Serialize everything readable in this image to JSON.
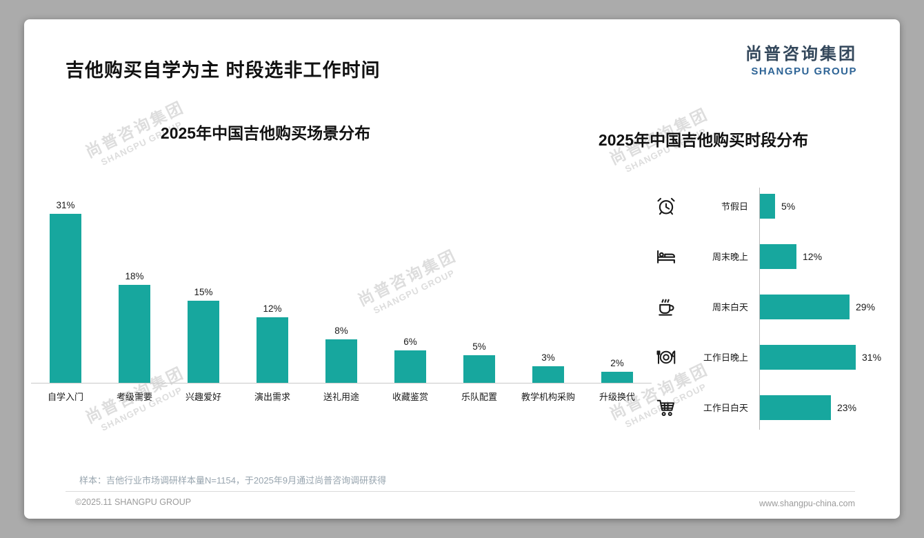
{
  "slide": {
    "title": "吉他购买自学为主 时段选非工作时间",
    "logo": {
      "cn": "尚普咨询集团",
      "en": "SHANGPU GROUP"
    },
    "watermark": {
      "cn": "尚普咨询集团",
      "en": "SHANGPU GROUP"
    },
    "sample_note": "样本：吉他行业市场调研样本量N=1154，于2025年9月通过尚普咨询调研获得",
    "footer": {
      "left": "©2025.11 SHANGPU GROUP",
      "right": "www.shangpu-china.com"
    }
  },
  "colors": {
    "bar": "#17A79E",
    "logo_cn": "#33475B",
    "logo_en": "#2E6496",
    "title": "#111111"
  },
  "chart_data": [
    {
      "type": "bar",
      "orientation": "vertical",
      "title": "2025年中国吉他购买场景分布",
      "categories": [
        "自学入门",
        "考级需要",
        "兴趣爱好",
        "演出需求",
        "送礼用途",
        "收藏鉴赏",
        "乐队配置",
        "教学机构采购",
        "升级换代"
      ],
      "values": [
        31,
        18,
        15,
        12,
        8,
        6,
        5,
        3,
        2
      ],
      "unit": "%",
      "ylim": [
        0,
        32
      ],
      "bar_color": "#17A79E",
      "grid": false,
      "value_labels_position": "above"
    },
    {
      "type": "bar",
      "orientation": "horizontal",
      "title": "2025年中国吉他购买时段分布",
      "categories": [
        "节假日",
        "周末晚上",
        "周末白天",
        "工作日晚上",
        "工作日白天"
      ],
      "values": [
        5,
        12,
        29,
        31,
        23
      ],
      "icons": [
        "alarm-clock-icon",
        "bed-icon",
        "coffee-cup-icon",
        "dining-plate-icon",
        "shopping-cart-icon"
      ],
      "unit": "%",
      "xlim": [
        0,
        32
      ],
      "bar_color": "#17A79E",
      "grid": false,
      "value_labels_position": "right"
    }
  ]
}
